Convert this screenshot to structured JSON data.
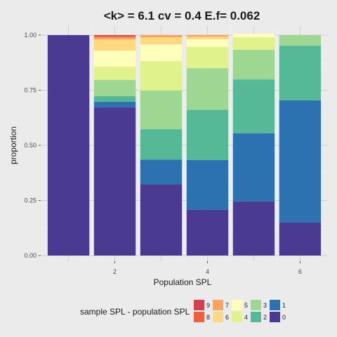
{
  "chart_data": {
    "type": "bar",
    "stacked": true,
    "title": "<k> = 6.1 cv = 0.4 E.f= 0.062",
    "xlabel": "Population SPL",
    "ylabel": "proportion",
    "x": [
      1,
      2,
      3,
      4,
      5,
      6
    ],
    "x_ticks": [
      2,
      4,
      6
    ],
    "x_range": [
      0.4,
      6.6
    ],
    "ylim": [
      0,
      1
    ],
    "y_ticks": [
      0,
      0.25,
      0.5,
      0.75,
      1
    ],
    "y_tick_labels": [
      "0.00",
      "0.25",
      "0.50",
      "0.75",
      "1.00"
    ],
    "grid": true,
    "legend_position": "bottom",
    "legend_title": "sample SPL - population SPL",
    "series": [
      {
        "name": "0",
        "color": "#4b3a91",
        "values": [
          1.0,
          0.673,
          0.323,
          0.208,
          0.246,
          0.15
        ]
      },
      {
        "name": "1",
        "color": "#2c72b0",
        "values": [
          0.0,
          0.025,
          0.112,
          0.225,
          0.309,
          0.554
        ]
      },
      {
        "name": "2",
        "color": "#55b896",
        "values": [
          0.0,
          0.025,
          0.138,
          0.228,
          0.244,
          0.248
        ]
      },
      {
        "name": "3",
        "color": "#9dd791",
        "values": [
          0.0,
          0.074,
          0.176,
          0.189,
          0.134,
          0.048
        ]
      },
      {
        "name": "4",
        "color": "#dff28b",
        "values": [
          0.0,
          0.06,
          0.133,
          0.097,
          0.057,
          0.0
        ]
      },
      {
        "name": "5",
        "color": "#ffffbb",
        "values": [
          0.0,
          0.073,
          0.076,
          0.034,
          0.016,
          0.0
        ]
      },
      {
        "name": "6",
        "color": "#fed97f",
        "values": [
          0.0,
          0.05,
          0.032,
          0.012,
          0.0,
          0.0
        ]
      },
      {
        "name": "7",
        "color": "#fba25c",
        "values": [
          0.0,
          0.01,
          0.01,
          0.007,
          0.0,
          0.0
        ]
      },
      {
        "name": "8",
        "color": "#ef5f3e",
        "values": [
          0.0,
          0.006,
          0.0,
          0.0,
          0.0,
          0.0
        ]
      },
      {
        "name": "9",
        "color": "#d53e4f",
        "values": [
          0.0,
          0.004,
          0.0,
          0.0,
          0.0,
          0.0
        ]
      }
    ],
    "legend_order": [
      [
        "9",
        "7",
        "5",
        "3",
        "1"
      ],
      [
        "8",
        "6",
        "4",
        "2",
        "0"
      ]
    ]
  }
}
